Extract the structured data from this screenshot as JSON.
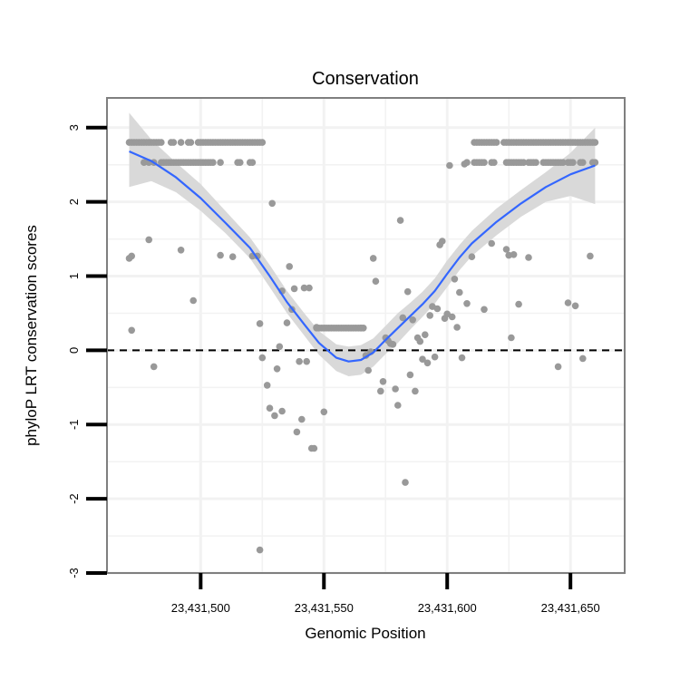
{
  "chart_data": {
    "type": "scatter",
    "title": "Conservation",
    "xlabel": "Genomic Position",
    "ylabel": "phyloP LRT conservation scores",
    "xlim": [
      23431462,
      23431672
    ],
    "ylim": [
      -3,
      3.4
    ],
    "x_ticks": [
      23431500,
      23431550,
      23431600,
      23431650
    ],
    "x_tick_labels": [
      "23,431,500",
      "23,431,550",
      "23,431,600",
      "23,431,650"
    ],
    "y_ticks": [
      -3,
      -2,
      -1,
      0,
      1,
      2,
      3
    ],
    "y_tick_labels": [
      "-3",
      "-2",
      "-1",
      "0",
      "1",
      "2",
      "3"
    ],
    "reference_line": {
      "y": 0,
      "style": "dashed"
    },
    "points": [
      [
        23431471,
        2.8
      ],
      [
        23431472,
        2.8
      ],
      [
        23431473,
        2.8
      ],
      [
        23431474,
        2.8
      ],
      [
        23431475,
        2.8
      ],
      [
        23431476,
        2.8
      ],
      [
        23431477,
        2.8
      ],
      [
        23431478,
        2.8
      ],
      [
        23431479,
        2.8
      ],
      [
        23431480,
        2.8
      ],
      [
        23431481,
        2.8
      ],
      [
        23431482,
        2.8
      ],
      [
        23431483,
        2.8
      ],
      [
        23431484,
        2.8
      ],
      [
        23431488,
        2.8
      ],
      [
        23431489,
        2.8
      ],
      [
        23431492,
        2.8
      ],
      [
        23431495,
        2.8
      ],
      [
        23431496,
        2.8
      ],
      [
        23431499,
        2.8
      ],
      [
        23431500,
        2.8
      ],
      [
        23431501,
        2.8
      ],
      [
        23431502,
        2.8
      ],
      [
        23431503,
        2.8
      ],
      [
        23431504,
        2.8
      ],
      [
        23431505,
        2.8
      ],
      [
        23431506,
        2.8
      ],
      [
        23431507,
        2.8
      ],
      [
        23431508,
        2.8
      ],
      [
        23431509,
        2.8
      ],
      [
        23431510,
        2.8
      ],
      [
        23431511,
        2.8
      ],
      [
        23431512,
        2.8
      ],
      [
        23431513,
        2.8
      ],
      [
        23431514,
        2.8
      ],
      [
        23431515,
        2.8
      ],
      [
        23431516,
        2.8
      ],
      [
        23431517,
        2.8
      ],
      [
        23431518,
        2.8
      ],
      [
        23431519,
        2.8
      ],
      [
        23431520,
        2.8
      ],
      [
        23431521,
        2.8
      ],
      [
        23431522,
        2.8
      ],
      [
        23431523,
        2.8
      ],
      [
        23431524,
        2.8
      ],
      [
        23431525,
        2.8
      ],
      [
        23431477,
        2.53
      ],
      [
        23431479,
        2.53
      ],
      [
        23431481,
        2.53
      ],
      [
        23431484,
        2.53
      ],
      [
        23431485,
        2.53
      ],
      [
        23431486,
        2.53
      ],
      [
        23431487,
        2.53
      ],
      [
        23431488,
        2.53
      ],
      [
        23431489,
        2.53
      ],
      [
        23431490,
        2.53
      ],
      [
        23431491,
        2.53
      ],
      [
        23431492,
        2.53
      ],
      [
        23431493,
        2.53
      ],
      [
        23431494,
        2.53
      ],
      [
        23431495,
        2.53
      ],
      [
        23431496,
        2.53
      ],
      [
        23431497,
        2.53
      ],
      [
        23431498,
        2.53
      ],
      [
        23431499,
        2.53
      ],
      [
        23431500,
        2.53
      ],
      [
        23431501,
        2.53
      ],
      [
        23431502,
        2.53
      ],
      [
        23431503,
        2.53
      ],
      [
        23431504,
        2.53
      ],
      [
        23431505,
        2.53
      ],
      [
        23431508,
        2.53
      ],
      [
        23431515,
        2.53
      ],
      [
        23431516,
        2.53
      ],
      [
        23431520,
        2.53
      ],
      [
        23431521,
        2.53
      ],
      [
        23431611,
        2.8
      ],
      [
        23431612,
        2.8
      ],
      [
        23431613,
        2.8
      ],
      [
        23431614,
        2.8
      ],
      [
        23431615,
        2.8
      ],
      [
        23431616,
        2.8
      ],
      [
        23431617,
        2.8
      ],
      [
        23431618,
        2.8
      ],
      [
        23431619,
        2.8
      ],
      [
        23431620,
        2.8
      ],
      [
        23431623,
        2.8
      ],
      [
        23431624,
        2.8
      ],
      [
        23431625,
        2.8
      ],
      [
        23431626,
        2.8
      ],
      [
        23431627,
        2.8
      ],
      [
        23431628,
        2.8
      ],
      [
        23431629,
        2.8
      ],
      [
        23431630,
        2.8
      ],
      [
        23431631,
        2.8
      ],
      [
        23431632,
        2.8
      ],
      [
        23431633,
        2.8
      ],
      [
        23431634,
        2.8
      ],
      [
        23431635,
        2.8
      ],
      [
        23431636,
        2.8
      ],
      [
        23431637,
        2.8
      ],
      [
        23431638,
        2.8
      ],
      [
        23431639,
        2.8
      ],
      [
        23431640,
        2.8
      ],
      [
        23431641,
        2.8
      ],
      [
        23431642,
        2.8
      ],
      [
        23431643,
        2.8
      ],
      [
        23431644,
        2.8
      ],
      [
        23431645,
        2.8
      ],
      [
        23431646,
        2.8
      ],
      [
        23431647,
        2.8
      ],
      [
        23431648,
        2.8
      ],
      [
        23431649,
        2.8
      ],
      [
        23431650,
        2.8
      ],
      [
        23431651,
        2.8
      ],
      [
        23431652,
        2.8
      ],
      [
        23431653,
        2.8
      ],
      [
        23431654,
        2.8
      ],
      [
        23431655,
        2.8
      ],
      [
        23431656,
        2.8
      ],
      [
        23431657,
        2.8
      ],
      [
        23431658,
        2.8
      ],
      [
        23431659,
        2.8
      ],
      [
        23431660,
        2.8
      ],
      [
        23431608,
        2.53
      ],
      [
        23431611,
        2.53
      ],
      [
        23431612,
        2.53
      ],
      [
        23431613,
        2.53
      ],
      [
        23431614,
        2.53
      ],
      [
        23431615,
        2.53
      ],
      [
        23431618,
        2.53
      ],
      [
        23431619,
        2.53
      ],
      [
        23431624,
        2.53
      ],
      [
        23431625,
        2.53
      ],
      [
        23431626,
        2.53
      ],
      [
        23431627,
        2.53
      ],
      [
        23431628,
        2.53
      ],
      [
        23431629,
        2.53
      ],
      [
        23431630,
        2.53
      ],
      [
        23431631,
        2.53
      ],
      [
        23431633,
        2.53
      ],
      [
        23431634,
        2.53
      ],
      [
        23431635,
        2.53
      ],
      [
        23431636,
        2.53
      ],
      [
        23431639,
        2.53
      ],
      [
        23431640,
        2.53
      ],
      [
        23431641,
        2.53
      ],
      [
        23431642,
        2.53
      ],
      [
        23431643,
        2.53
      ],
      [
        23431644,
        2.53
      ],
      [
        23431645,
        2.53
      ],
      [
        23431646,
        2.53
      ],
      [
        23431647,
        2.53
      ],
      [
        23431649,
        2.53
      ],
      [
        23431650,
        2.53
      ],
      [
        23431651,
        2.53
      ],
      [
        23431654,
        2.53
      ],
      [
        23431655,
        2.53
      ],
      [
        23431659,
        2.53
      ],
      [
        23431660,
        2.53
      ],
      [
        23431547,
        0.3
      ],
      [
        23431548,
        0.3
      ],
      [
        23431549,
        0.3
      ],
      [
        23431550,
        0.3
      ],
      [
        23431551,
        0.3
      ],
      [
        23431552,
        0.3
      ],
      [
        23431553,
        0.3
      ],
      [
        23431554,
        0.3
      ],
      [
        23431555,
        0.3
      ],
      [
        23431556,
        0.3
      ],
      [
        23431557,
        0.3
      ],
      [
        23431558,
        0.3
      ],
      [
        23431559,
        0.3
      ],
      [
        23431560,
        0.3
      ],
      [
        23431561,
        0.3
      ],
      [
        23431562,
        0.3
      ],
      [
        23431563,
        0.3
      ],
      [
        23431564,
        0.3
      ],
      [
        23431565,
        0.3
      ],
      [
        23431566,
        0.3
      ],
      [
        23431471,
        1.24
      ],
      [
        23431472,
        1.27
      ],
      [
        23431472,
        0.27
      ],
      [
        23431479,
        1.49
      ],
      [
        23431481,
        -0.22
      ],
      [
        23431492,
        1.35
      ],
      [
        23431497,
        0.67
      ],
      [
        23431508,
        1.28
      ],
      [
        23431513,
        1.26
      ],
      [
        23431521,
        1.27
      ],
      [
        23431523,
        1.27
      ],
      [
        23431524,
        0.36
      ],
      [
        23431525,
        -0.1
      ],
      [
        23431527,
        -0.47
      ],
      [
        23431528,
        -0.78
      ],
      [
        23431529,
        1.98
      ],
      [
        23431530,
        -0.88
      ],
      [
        23431531,
        -0.25
      ],
      [
        23431532,
        0.05
      ],
      [
        23431533,
        0.8
      ],
      [
        23431533,
        -0.82
      ],
      [
        23431535,
        0.37
      ],
      [
        23431536,
        1.13
      ],
      [
        23431537,
        0.55
      ],
      [
        23431538,
        0.83
      ],
      [
        23431539,
        -1.1
      ],
      [
        23431540,
        -0.15
      ],
      [
        23431541,
        -0.93
      ],
      [
        23431542,
        0.84
      ],
      [
        23431543,
        -0.15
      ],
      [
        23431544,
        0.84
      ],
      [
        23431545,
        -1.32
      ],
      [
        23431546,
        -1.32
      ],
      [
        23431547,
        0.31
      ],
      [
        23431550,
        -0.83
      ],
      [
        23431565,
        0.3
      ],
      [
        23431567,
        -0.07
      ],
      [
        23431568,
        -0.27
      ],
      [
        23431569,
        -0.02
      ],
      [
        23431570,
        1.24
      ],
      [
        23431571,
        0.93
      ],
      [
        23431573,
        -0.55
      ],
      [
        23431574,
        -0.42
      ],
      [
        23431575,
        0.17
      ],
      [
        23431576,
        0.13
      ],
      [
        23431577,
        0.09
      ],
      [
        23431578,
        0.08
      ],
      [
        23431579,
        -0.52
      ],
      [
        23431580,
        -0.74
      ],
      [
        23431581,
        1.75
      ],
      [
        23431582,
        0.44
      ],
      [
        23431583,
        -1.78
      ],
      [
        23431584,
        0.79
      ],
      [
        23431585,
        -0.33
      ],
      [
        23431586,
        0.41
      ],
      [
        23431587,
        -0.55
      ],
      [
        23431588,
        0.17
      ],
      [
        23431589,
        0.12
      ],
      [
        23431590,
        -0.12
      ],
      [
        23431591,
        0.21
      ],
      [
        23431592,
        -0.17
      ],
      [
        23431593,
        0.47
      ],
      [
        23431594,
        0.59
      ],
      [
        23431595,
        -0.09
      ],
      [
        23431596,
        0.56
      ],
      [
        23431597,
        1.42
      ],
      [
        23431598,
        1.47
      ],
      [
        23431599,
        0.43
      ],
      [
        23431600,
        0.49
      ],
      [
        23431601,
        2.49
      ],
      [
        23431602,
        0.45
      ],
      [
        23431603,
        0.96
      ],
      [
        23431604,
        0.31
      ],
      [
        23431605,
        0.78
      ],
      [
        23431606,
        -0.1
      ],
      [
        23431607,
        2.51
      ],
      [
        23431608,
        0.63
      ],
      [
        23431610,
        1.26
      ],
      [
        23431615,
        0.55
      ],
      [
        23431618,
        1.44
      ],
      [
        23431624,
        1.36
      ],
      [
        23431625,
        1.28
      ],
      [
        23431626,
        0.17
      ],
      [
        23431627,
        1.29
      ],
      [
        23431629,
        0.62
      ],
      [
        23431633,
        1.25
      ],
      [
        23431645,
        -0.22
      ],
      [
        23431649,
        0.64
      ],
      [
        23431652,
        0.6
      ],
      [
        23431655,
        -0.11
      ],
      [
        23431658,
        1.27
      ],
      [
        23431524,
        -2.69
      ]
    ],
    "trend_line": {
      "method": "loess",
      "x": [
        23431471,
        23431480,
        23431490,
        23431500,
        23431510,
        23431520,
        23431528,
        23431535,
        23431542,
        23431548,
        23431555,
        23431560,
        23431565,
        23431570,
        23431575,
        23431580,
        23431585,
        23431590,
        23431595,
        23431600,
        23431605,
        23431610,
        23431620,
        23431630,
        23431640,
        23431650,
        23431660
      ],
      "y": [
        2.68,
        2.55,
        2.33,
        2.05,
        1.72,
        1.38,
        1.0,
        0.65,
        0.35,
        0.1,
        -0.1,
        -0.15,
        -0.13,
        -0.03,
        0.14,
        0.3,
        0.46,
        0.62,
        0.8,
        1.03,
        1.25,
        1.44,
        1.73,
        1.98,
        2.2,
        2.37,
        2.49
      ],
      "ci_lower": [
        2.2,
        2.28,
        2.13,
        1.88,
        1.58,
        1.24,
        0.85,
        0.5,
        0.2,
        -0.06,
        -0.28,
        -0.35,
        -0.33,
        -0.22,
        -0.05,
        0.1,
        0.28,
        0.45,
        0.63,
        0.85,
        1.08,
        1.27,
        1.55,
        1.8,
        2.0,
        2.08,
        1.97
      ],
      "ci_upper": [
        3.2,
        2.84,
        2.53,
        2.24,
        1.88,
        1.52,
        1.15,
        0.8,
        0.5,
        0.26,
        0.08,
        0.05,
        0.07,
        0.16,
        0.33,
        0.5,
        0.64,
        0.79,
        0.97,
        1.21,
        1.42,
        1.61,
        1.91,
        2.16,
        2.4,
        2.66,
        3.0
      ]
    },
    "colors": {
      "points": "#999999",
      "trend": "#3366ff",
      "ribbon": "#d9d9d9",
      "panel_border": "#7f7f7f",
      "grid": "#f2f2f2"
    }
  }
}
